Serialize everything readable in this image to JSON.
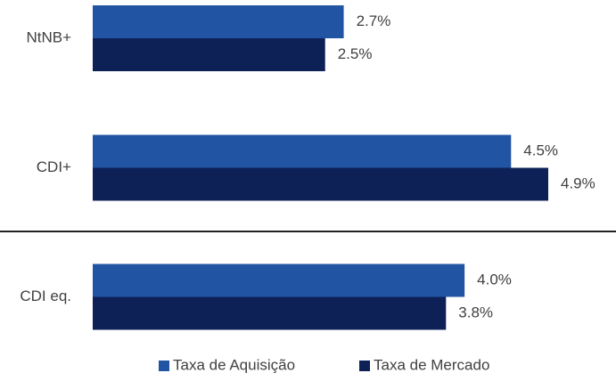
{
  "chart_data": {
    "type": "barh",
    "categories": [
      "NtNB+",
      "CDI+",
      "CDI eq."
    ],
    "series": [
      {
        "name": "Taxa de Aquisição",
        "color": "#2154a3",
        "values": [
          2.7,
          4.5,
          4.0
        ],
        "value_labels": [
          "2.7%",
          "4.5%",
          "4.0%"
        ]
      },
      {
        "name": "Taxa de Mercado",
        "color": "#0d2157",
        "values": [
          2.5,
          4.9,
          3.8
        ],
        "value_labels": [
          "2.5%",
          "4.9%",
          "3.8%"
        ]
      }
    ]
  }
}
